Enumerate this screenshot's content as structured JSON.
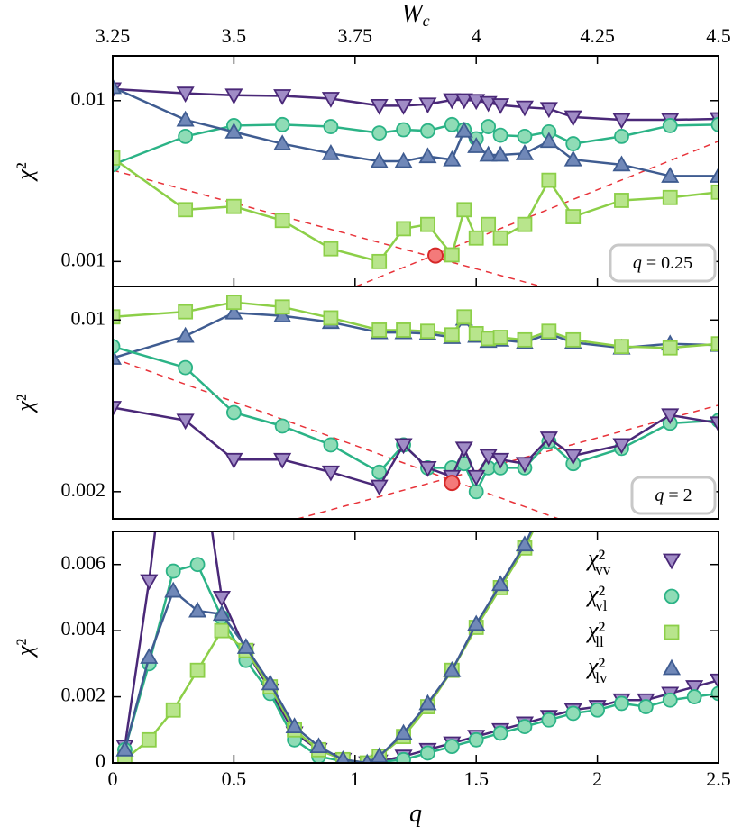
{
  "chart_data": [
    {
      "type": "line",
      "log_y": true,
      "xlabel": "Wc",
      "xtick_side": "top",
      "ylabel": "χ²",
      "xlim": [
        3.25,
        4.5
      ],
      "xticks": [
        3.25,
        3.5,
        3.75,
        4,
        4.25,
        4.5
      ],
      "ylim": [
        0.0007,
        0.019
      ],
      "yticks": [
        0.01,
        0.001
      ],
      "annotation": "q = 0.25",
      "x": [
        3.25,
        3.4,
        3.5,
        3.6,
        3.7,
        3.8,
        3.85,
        3.9,
        3.95,
        3.975,
        4.0,
        4.025,
        4.05,
        4.1,
        4.15,
        4.2,
        4.3,
        4.4,
        4.5
      ],
      "series": [
        {
          "marker": "triangle_down",
          "color": "#4a2878",
          "fill": "#a08cc6",
          "values": [
            0.0118,
            0.0111,
            0.0108,
            0.0107,
            0.0103,
            0.0093,
            0.0093,
            0.0095,
            0.0101,
            0.0101,
            0.01,
            0.0097,
            0.0094,
            0.0091,
            0.0089,
            0.0079,
            0.0076,
            0.0076,
            0.0077
          ]
        },
        {
          "marker": "circle",
          "color": "#2bb386",
          "fill": "#8fdcb6",
          "values": [
            0.004,
            0.006,
            0.007,
            0.0071,
            0.0069,
            0.0063,
            0.0066,
            0.0065,
            0.0071,
            0.0066,
            0.0058,
            0.0069,
            0.0061,
            0.006,
            0.0064,
            0.0054,
            0.006,
            0.007,
            0.0071
          ]
        },
        {
          "marker": "square",
          "color": "#8ccf48",
          "fill": "#b8e58c",
          "values": [
            0.0044,
            0.0021,
            0.0022,
            0.0018,
            0.0012,
            0.001,
            0.0016,
            0.0017,
            0.0011,
            0.0021,
            0.0014,
            0.0017,
            0.0014,
            0.0017,
            0.0032,
            0.0019,
            0.0024,
            0.0025,
            0.0027
          ]
        },
        {
          "marker": "triangle_up",
          "color": "#3f5c91",
          "fill": "#7088b8",
          "values": [
            0.0121,
            0.0076,
            0.0064,
            0.0054,
            0.0047,
            0.0042,
            0.0042,
            0.0045,
            0.0043,
            0.0065,
            0.0052,
            0.0046,
            0.0046,
            0.0047,
            0.0056,
            0.0043,
            0.004,
            0.0034,
            0.0034
          ]
        }
      ],
      "fit_color": "#e8333a",
      "fit_lines": [
        {
          "x": [
            3.25,
            4.134
          ],
          "y": [
            0.0037,
            0.0007
          ]
        },
        {
          "x": [
            3.752,
            4.5
          ],
          "y": [
            0.0007,
            0.0056
          ]
        }
      ],
      "highlight": {
        "x": 3.916,
        "y": 0.00109
      }
    },
    {
      "type": "line",
      "log_y": true,
      "ylabel": "χ²",
      "xlim": [
        3.25,
        4.5
      ],
      "ylim": [
        0.00155,
        0.0137
      ],
      "yticks": [
        0.01,
        0.002
      ],
      "annotation": "q = 2",
      "x": [
        3.25,
        3.4,
        3.5,
        3.6,
        3.7,
        3.8,
        3.85,
        3.9,
        3.95,
        3.975,
        4.0,
        4.025,
        4.05,
        4.1,
        4.15,
        4.2,
        4.3,
        4.4,
        4.5
      ],
      "series": [
        {
          "marker": "triangle_up",
          "color": "#3f5c91",
          "fill": "#7088b8",
          "values": [
            0.007,
            0.0086,
            0.0107,
            0.0104,
            0.0098,
            0.0089,
            0.0089,
            0.0088,
            0.0085,
            0.0101,
            0.0086,
            0.0082,
            0.0083,
            0.0081,
            0.0088,
            0.0081,
            0.0077,
            0.008,
            0.0079
          ]
        },
        {
          "marker": "square",
          "color": "#8ccf48",
          "fill": "#b8e58c",
          "values": [
            0.0103,
            0.0108,
            0.0118,
            0.0113,
            0.0102,
            0.0091,
            0.0091,
            0.009,
            0.0087,
            0.0103,
            0.0088,
            0.0084,
            0.0085,
            0.0083,
            0.009,
            0.0083,
            0.0078,
            0.0077,
            0.008
          ]
        },
        {
          "marker": "circle",
          "color": "#2bb386",
          "fill": "#8fdcb6",
          "values": [
            0.0078,
            0.0064,
            0.0042,
            0.0037,
            0.0031,
            0.0024,
            0.0031,
            0.0025,
            0.0025,
            0.0026,
            0.002,
            0.0025,
            0.0025,
            0.0025,
            0.0032,
            0.0026,
            0.003,
            0.0038,
            0.0039
          ]
        },
        {
          "marker": "triangle_down",
          "color": "#4a2878",
          "fill": "#a08cc6",
          "values": [
            0.0044,
            0.0039,
            0.0027,
            0.0027,
            0.0024,
            0.0021,
            0.0031,
            0.0025,
            0.0023,
            0.003,
            0.0023,
            0.0028,
            0.0027,
            0.0026,
            0.0033,
            0.0028,
            0.0031,
            0.0041,
            0.0038
          ]
        }
      ],
      "fit_color": "#e8333a",
      "fit_lines": [
        {
          "x": [
            3.25,
            4.17
          ],
          "y": [
            0.007,
            0.00155
          ]
        },
        {
          "x": [
            3.631,
            4.5
          ],
          "y": [
            0.00155,
            0.0045
          ]
        }
      ],
      "highlight": {
        "x": 3.95,
        "y": 0.00217
      }
    },
    {
      "type": "line",
      "log_y": false,
      "xlabel": "q",
      "xtick_side": "bottom",
      "ylabel": "χ²",
      "xlim": [
        0,
        2.5
      ],
      "xticks": [
        0,
        0.5,
        1,
        1.5,
        2,
        2.5
      ],
      "ylim": [
        0,
        0.007
      ],
      "yticks": [
        0,
        0.002,
        0.004,
        0.006
      ],
      "legend": "upper right",
      "x": [
        0.05,
        0.15,
        0.25,
        0.35,
        0.45,
        0.55,
        0.65,
        0.75,
        0.85,
        0.95,
        1.05,
        1.1,
        1.2,
        1.3,
        1.4,
        1.5,
        1.6,
        1.7,
        1.8,
        1.9,
        2.0,
        2.1,
        2.2,
        2.3,
        2.4,
        2.5
      ],
      "series": [
        {
          "name": "χ²vv",
          "marker": "triangle_down",
          "color": "#4a2878",
          "fill": "#a08cc6",
          "values": [
            0.0005,
            0.0055,
            0.0115,
            0.01,
            0.005,
            0.0034,
            0.0022,
            0.0009,
            0.0004,
            0.0001,
            0.0,
            5e-05,
            0.0002,
            0.0004,
            0.0006,
            0.0008,
            0.001,
            0.0012,
            0.0014,
            0.0016,
            0.0017,
            0.0019,
            0.0019,
            0.0021,
            0.0023,
            0.0025
          ]
        },
        {
          "name": "χ²vl",
          "marker": "circle",
          "color": "#2bb386",
          "fill": "#8fdcb6",
          "values": [
            0.0004,
            0.003,
            0.0058,
            0.006,
            0.0044,
            0.0031,
            0.0021,
            0.0007,
            0.0002,
            5e-05,
            0.0,
            3e-05,
            0.0001,
            0.0003,
            0.0005,
            0.0007,
            0.0009,
            0.0011,
            0.0013,
            0.0015,
            0.0016,
            0.0018,
            0.0017,
            0.0019,
            0.002,
            0.0021
          ]
        },
        {
          "name": "χ²ll",
          "marker": "square",
          "color": "#8ccf48",
          "fill": "#b8e58c",
          "values": [
            0.0001,
            0.0007,
            0.0016,
            0.0028,
            0.004,
            0.0034,
            0.0023,
            0.001,
            0.0004,
            0.0001,
            0.0,
            0.0002,
            0.0008,
            0.0017,
            0.0028,
            0.0041,
            0.0053,
            0.0065,
            0.008,
            null,
            null,
            null,
            null,
            null,
            null,
            null
          ]
        },
        {
          "name": "χ²lv",
          "marker": "triangle_up",
          "color": "#3f5c91",
          "fill": "#7088b8",
          "values": [
            0.0004,
            0.0032,
            0.0052,
            0.0046,
            0.0045,
            0.0035,
            0.0024,
            0.0011,
            0.0005,
            0.0001,
            0.0,
            0.0002,
            0.0009,
            0.0018,
            0.0028,
            0.0042,
            0.0054,
            0.0066,
            0.0081,
            null,
            null,
            null,
            null,
            null,
            null,
            null
          ]
        }
      ]
    }
  ]
}
